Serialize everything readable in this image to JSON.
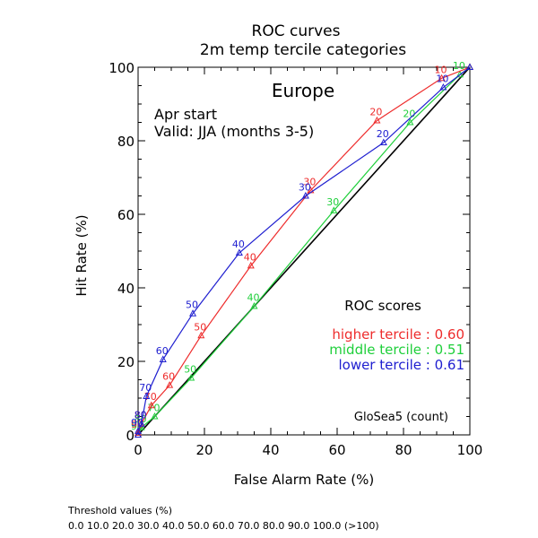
{
  "chart_data": {
    "type": "line",
    "title": [
      "ROC curves",
      "2m temp tercile categories"
    ],
    "region": "Europe",
    "info": [
      "Apr start",
      "Valid: JJA (months 3-5)"
    ],
    "xlabel": "False Alarm Rate (%)",
    "ylabel": "Hit Rate (%)",
    "xlim": [
      0,
      100
    ],
    "ylim": [
      0,
      100
    ],
    "x_ticks": [
      0,
      20,
      40,
      60,
      80,
      100
    ],
    "y_ticks": [
      0,
      20,
      40,
      60,
      80,
      100
    ],
    "grid": false,
    "scores_title": "ROC scores",
    "credit": "GloSea5 (count)",
    "threshold_title": "Threshold values (%)",
    "threshold_values": "0.0 10.0 20.0 30.0 40.0 50.0 60.0 70.0 80.0 90.0 100.0 (>100)",
    "diagonal": true,
    "series": [
      {
        "name": "higher tercile",
        "score_text": "higher tercile : 0.60",
        "color": "#ee2c2c",
        "x": [
          0,
          0,
          1,
          4,
          9.5,
          19,
          34,
          52,
          72,
          91.5,
          100
        ],
        "y": [
          0,
          0.5,
          3,
          8,
          13.5,
          27,
          46,
          66.5,
          85.5,
          97,
          100
        ],
        "labels": [
          "",
          "90",
          "80",
          "70",
          "60",
          "50",
          "40",
          "30",
          "20",
          "10",
          ""
        ]
      },
      {
        "name": "middle tercile",
        "score_text": "middle tercile : 0.51",
        "color": "#1ecf3a",
        "x": [
          0,
          0,
          1,
          5,
          16,
          35,
          59,
          82,
          97,
          100
        ],
        "y": [
          0,
          0,
          2,
          5,
          15.5,
          35,
          61,
          85,
          98,
          100
        ],
        "labels": [
          "",
          "90",
          "80",
          "70",
          "50",
          "40",
          "30",
          "20",
          "10",
          ""
        ]
      },
      {
        "name": "lower tercile",
        "score_text": "lower tercile : 0.61",
        "color": "#2020d0",
        "x": [
          0,
          0,
          1,
          2.5,
          7.5,
          16.5,
          30.5,
          50.5,
          74,
          92,
          100
        ],
        "y": [
          0,
          1,
          3,
          10.5,
          20.5,
          33,
          49.5,
          65,
          79.5,
          94.5,
          100
        ],
        "labels": [
          "",
          "90",
          "80",
          "70",
          "60",
          "50",
          "40",
          "30",
          "20",
          "10",
          ""
        ]
      }
    ]
  }
}
